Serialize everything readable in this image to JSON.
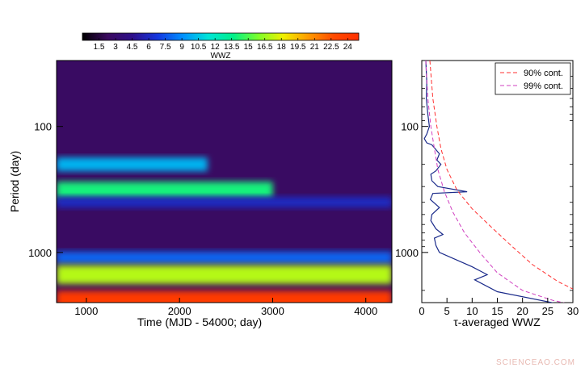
{
  "watermark": "SCIENCEAO.COM",
  "chart_data": [
    {
      "type": "heatmap",
      "xlabel": "Time (MJD - 54000; day)",
      "ylabel": "Period (day)",
      "xlim": [
        680,
        4280
      ],
      "ylim": [
        30,
        2500
      ],
      "yscale": "log",
      "x_ticks": [
        1000,
        2000,
        3000,
        4000
      ],
      "y_ticks": [
        100,
        1000
      ],
      "colorbar": {
        "label": "WWZ",
        "ticks": [
          "1.5",
          "3",
          "4.5",
          "6",
          "7.5",
          "9",
          "10.5",
          "12",
          "13.5",
          "15",
          "16.5",
          "18",
          "19.5",
          "21",
          "22.5",
          "24"
        ],
        "range": [
          0,
          25
        ],
        "colormap": [
          "#000000",
          "#3a0a5e",
          "#2e0f8a",
          "#1437e0",
          "#0090ff",
          "#00e4d8",
          "#00f08a",
          "#7dff2a",
          "#f0f000",
          "#ff9a00",
          "#ff4a00",
          "#ff3000"
        ]
      },
      "bands": [
        {
          "period": 200,
          "peak_wwz": 10,
          "extent_time": [
            680,
            2300
          ]
        },
        {
          "period": 320,
          "peak_wwz": 14,
          "extent_time": [
            680,
            3000
          ]
        },
        {
          "period": 400,
          "peak_wwz": 6,
          "extent_time": [
            680,
            4280
          ]
        },
        {
          "period": 1100,
          "peak_wwz": 8,
          "extent_time": [
            680,
            4280
          ]
        },
        {
          "period": 1500,
          "peak_wwz": 17,
          "extent_time": [
            680,
            4280
          ]
        },
        {
          "period": 2500,
          "peak_wwz": 24,
          "extent_time": [
            680,
            4280
          ]
        }
      ]
    },
    {
      "type": "line",
      "xlabel": "τ-averaged WWZ",
      "xlim": [
        0,
        30
      ],
      "ylim": [
        30,
        2500
      ],
      "yscale": "log",
      "x_ticks": [
        0,
        5,
        10,
        15,
        20,
        25,
        30
      ],
      "y_ticks": [
        100,
        1000
      ],
      "legend_position": "top-right",
      "series": [
        {
          "name": "",
          "color": "#1a2a8a",
          "points": [
            [
              0.8,
              30
            ],
            [
              1.0,
              45
            ],
            [
              0.9,
              60
            ],
            [
              1.2,
              80
            ],
            [
              1.5,
              100
            ],
            [
              1.0,
              115
            ],
            [
              0.5,
              125
            ],
            [
              1.0,
              135
            ],
            [
              2.0,
              140
            ],
            [
              3.5,
              165
            ],
            [
              3.0,
              185
            ],
            [
              3.8,
              200
            ],
            [
              2.8,
              225
            ],
            [
              1.8,
              240
            ],
            [
              2.0,
              270
            ],
            [
              3.2,
              300
            ],
            [
              9.0,
              330
            ],
            [
              2.2,
              340
            ],
            [
              1.7,
              380
            ],
            [
              3.5,
              440
            ],
            [
              2.0,
              500
            ],
            [
              1.8,
              560
            ],
            [
              2.8,
              650
            ],
            [
              4.2,
              720
            ],
            [
              2.5,
              770
            ],
            [
              2.8,
              880
            ],
            [
              3.5,
              1000
            ],
            [
              10.0,
              1300
            ],
            [
              13.0,
              1500
            ],
            [
              10.5,
              1650
            ],
            [
              15.0,
              2050
            ],
            [
              30.0,
              2700
            ]
          ]
        },
        {
          "name": "90% cont.",
          "color": "#ff3030",
          "dash": "dashed",
          "points": [
            [
              1.6,
              30
            ],
            [
              2.2,
              60
            ],
            [
              3.0,
              100
            ],
            [
              3.8,
              150
            ],
            [
              5.0,
              220
            ],
            [
              7.0,
              320
            ],
            [
              10.0,
              450
            ],
            [
              14.0,
              640
            ],
            [
              18.0,
              900
            ],
            [
              22.0,
              1250
            ],
            [
              27.0,
              1700
            ],
            [
              30.0,
              1950
            ]
          ]
        },
        {
          "name": "99% cont.",
          "color": "#d040c0",
          "dash": "dashed",
          "points": [
            [
              0.8,
              30
            ],
            [
              1.2,
              60
            ],
            [
              1.8,
              100
            ],
            [
              2.5,
              150
            ],
            [
              3.2,
              220
            ],
            [
              4.5,
              330
            ],
            [
              6.2,
              480
            ],
            [
              8.5,
              700
            ],
            [
              11.5,
              1000
            ],
            [
              15.0,
              1450
            ],
            [
              20.0,
              2000
            ],
            [
              26.0,
              2400
            ],
            [
              30.0,
              2600
            ]
          ]
        }
      ]
    }
  ]
}
